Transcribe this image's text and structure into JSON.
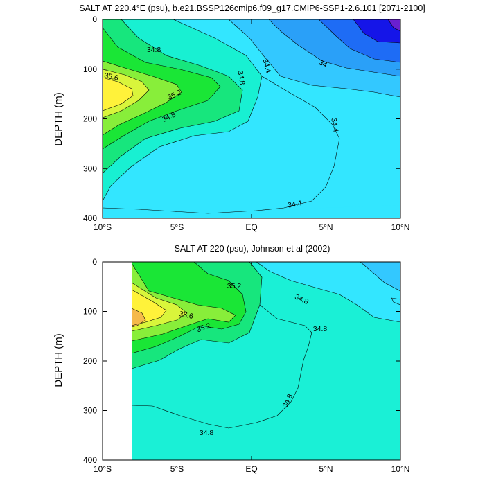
{
  "chart_data": [
    {
      "type": "contour",
      "title": "SALT AT 220.4°E (psu), b.e21.BSSP126cmip6.f09_g17.CMIP6-SSP1-2.6.101 [2071-2100]",
      "xlabel": "",
      "ylabel": "DEPTH (m)",
      "xlim": [
        -10,
        10
      ],
      "ylim": [
        400,
        0
      ],
      "x_ticks": [
        -10,
        -5,
        0,
        5,
        10
      ],
      "x_tick_labels": [
        "10°S",
        "5°S",
        "EQ",
        "5°N",
        "10°N"
      ],
      "y_ticks": [
        0,
        100,
        200,
        300,
        400
      ],
      "y_tick_labels": [
        "0",
        "100",
        "200",
        "300",
        "400"
      ],
      "contour_interval": 0.2,
      "contour_labels": [
        "34.8",
        "34.4",
        "34",
        "35.6",
        "34.8",
        "35.2",
        "34.8",
        "34.4",
        "34.4"
      ],
      "legend": "none",
      "grid": false
    },
    {
      "type": "contour",
      "title": "SALT AT 220 (psu), Johnson et al (2002)",
      "xlabel": "",
      "ylabel": "DEPTH (m)",
      "xlim": [
        -10,
        10
      ],
      "ylim": [
        400,
        0
      ],
      "x_ticks": [
        -10,
        -5,
        0,
        5,
        10
      ],
      "x_tick_labels": [
        "10°S",
        "5°S",
        "EQ",
        "5°N",
        "10°N"
      ],
      "y_ticks": [
        0,
        100,
        200,
        300,
        400
      ],
      "y_tick_labels": [
        "0",
        "100",
        "200",
        "300",
        "400"
      ],
      "data_coverage_x": [
        -8,
        10
      ],
      "contour_interval": 0.2,
      "contour_labels": [
        "35.2",
        "34.8",
        "35.6",
        "35.2",
        "34.8",
        "34.8",
        "34.8"
      ],
      "legend": "none",
      "grid": false
    }
  ],
  "colors": {
    "s_33_8": "#6a1fd0",
    "s_34_0": "#1515e8",
    "s_34_2": "#1e6cf5",
    "s_34_4": "#2aa0f8",
    "s_34_6": "#33c8ff",
    "s_34_8": "#33e6ff",
    "s_35_0": "#18f0d2",
    "s_35_2": "#17e67d",
    "s_35_4": "#1ae636",
    "s_35_6": "#88ee3a",
    "s_35_8": "#d9f53b",
    "s_36_0": "#fff23a",
    "s_36_2": "#fbd45a",
    "s_36_4": "#f5b94a"
  }
}
